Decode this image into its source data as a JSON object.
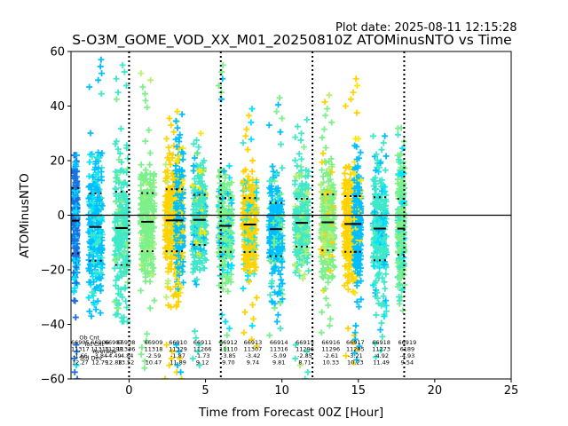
{
  "plot_date": "Plot date: 2025-08-11 12:15:28",
  "colors": {
    "frame": "#000000",
    "median": "#000000",
    "scatter_palette": [
      "#00bfff",
      "#00e5ff",
      "#3ee8c8",
      "#7cf08a",
      "#b8f070",
      "#ffd200",
      "#ffe600"
    ]
  },
  "chart_data": {
    "type": "scatter",
    "title": "S-O3M_GOME_VOD_XX_M01_20250810Z ATOMinusNTO vs Time",
    "xlabel": "Time from Forecast 00Z [Hour]",
    "ylabel": "ATOMinusNTO",
    "xlim": [
      -3.8,
      25
    ],
    "ylim": [
      -60,
      60
    ],
    "xticks": [
      0,
      5,
      10,
      15,
      20,
      25
    ],
    "yticks": [
      -60,
      -40,
      -20,
      0,
      20,
      40,
      60
    ],
    "zero_line": 0,
    "forecast_boundaries": [
      0,
      6,
      12,
      18
    ],
    "bins": [
      {
        "x": -3.5,
        "median": -2,
        "p25": -14,
        "p75": 10,
        "min": -60,
        "max": 22,
        "color": "#1e6fe0",
        "width": 0.25
      },
      {
        "x": -2.2,
        "median": -4.3,
        "p25": -16.7,
        "p75": 8.0,
        "min": -37,
        "max": 57,
        "color": "#00bfff",
        "width": 0.9
      },
      {
        "x": -0.5,
        "median": -4.7,
        "p25": -18.2,
        "p75": 8.6,
        "min": -39,
        "max": 55,
        "color": "#3ee8c8",
        "width": 0.9
      },
      {
        "x": 1.2,
        "median": -2.4,
        "p25": -13.2,
        "p75": 8.1,
        "min": -56,
        "max": 52,
        "color": "#7cf08a",
        "width": 0.9
      },
      {
        "x": 2.8,
        "median": -1.9,
        "p25": -13.2,
        "p75": 9.5,
        "min": -60,
        "max": 38,
        "color": "#ffd200",
        "width": 0.9
      },
      {
        "x": 3.3,
        "median": -1.9,
        "p25": -13.2,
        "p75": 9.5,
        "min": -60,
        "max": 37,
        "color": "#00bfff",
        "width": 0.5
      },
      {
        "x": 4.6,
        "median": -1.7,
        "p25": -10.9,
        "p75": 7.5,
        "min": -55,
        "max": 30,
        "color": "#3ee8c8",
        "width": 0.9
      },
      {
        "x": 6.3,
        "median": -3.9,
        "p25": -13.4,
        "p75": 6.3,
        "min": -49,
        "max": 55,
        "color": "#7cf08a",
        "width": 0.9
      },
      {
        "x": 7.9,
        "median": -3.4,
        "p25": -13.5,
        "p75": 6.3,
        "min": -48,
        "max": 39,
        "color": "#ffd200",
        "width": 0.9
      },
      {
        "x": 9.6,
        "median": -5.1,
        "p25": -15.0,
        "p75": 4.5,
        "min": -44,
        "max": 43,
        "color": "#00bfff",
        "width": 0.9
      },
      {
        "x": 11.3,
        "median": -2.8,
        "p25": -11.5,
        "p75": 6.0,
        "min": -60,
        "max": 35,
        "color": "#3ee8c8",
        "width": 0.9
      },
      {
        "x": 13.0,
        "median": -2.6,
        "p25": -12.9,
        "p75": 7.6,
        "min": -43,
        "max": 44,
        "color": "#7cf08a",
        "width": 0.9
      },
      {
        "x": 14.5,
        "median": -3.2,
        "p25": -13.4,
        "p75": 7.0,
        "min": -54,
        "max": 50,
        "color": "#ffd200",
        "width": 0.9
      },
      {
        "x": 14.95,
        "median": -3.2,
        "p25": -13.4,
        "p75": 7.0,
        "min": -53,
        "max": 28,
        "color": "#00bfff",
        "width": 0.45
      },
      {
        "x": 16.4,
        "median": -4.9,
        "p25": -16.5,
        "p75": 6.6,
        "min": -52,
        "max": 29,
        "color": "#3ee8c8",
        "width": 0.9
      },
      {
        "x": 17.8,
        "median": -4.9,
        "p25": -14.5,
        "p75": 6.0,
        "min": -35,
        "max": 32,
        "color": "#7cf08a",
        "width": 0.45
      }
    ],
    "annotations": [
      {
        "x": -3.2,
        "lines": [
          "66905",
          "11317",
          "-1.66",
          "12.27"
        ]
      },
      {
        "x": -1.9,
        "lines": [
          "66906",
          "11315",
          "-3.84",
          "12.79"
        ]
      },
      {
        "x": -2.6,
        "y": -45.5,
        "lines": [
          "Ob Cnt"
        ]
      },
      {
        "x": -2.3,
        "y": -48,
        "lines": [
          "Tot Cnt"
        ]
      },
      {
        "x": -1.6,
        "y": -50.5,
        "lines": [
          "Average"
        ]
      },
      {
        "x": -2.5,
        "y": -53,
        "lines": [
          "Std Dev"
        ]
      },
      {
        "x": -1.0,
        "lines": [
          "66907",
          "11298",
          "-4.49",
          "12.88"
        ]
      },
      {
        "x": -0.2,
        "lines": [
          "66908",
          "11336",
          "-4.84",
          "13.52"
        ]
      },
      {
        "x": 1.6,
        "lines": [
          "66909",
          "11318",
          "-2.59",
          "10.47"
        ]
      },
      {
        "x": 3.2,
        "lines": [
          "66910",
          "11329",
          "-1.87",
          "11.89"
        ]
      },
      {
        "x": 4.8,
        "lines": [
          "66911",
          "11266",
          "-1.73",
          "9.12"
        ]
      },
      {
        "x": 6.5,
        "lines": [
          "66912",
          "11110",
          "-3.85",
          "9.70"
        ]
      },
      {
        "x": 8.1,
        "lines": [
          "66913",
          "11307",
          "-3.42",
          "9.74"
        ]
      },
      {
        "x": 9.8,
        "lines": [
          "66914",
          "11316",
          "-5.09",
          "9.81"
        ]
      },
      {
        "x": 11.5,
        "lines": [
          "66915",
          "11296",
          "-2.85",
          "8.71"
        ]
      },
      {
        "x": 13.2,
        "lines": [
          "66916",
          "11296",
          "-2.61",
          "10.33"
        ]
      },
      {
        "x": 14.8,
        "lines": [
          "66917",
          "11285",
          "-3.21",
          "10.23"
        ]
      },
      {
        "x": 16.5,
        "lines": [
          "66918",
          "11273",
          "-4.92",
          "11.49"
        ]
      },
      {
        "x": 18.2,
        "lines": [
          "66919",
          "6189",
          "-4.93",
          "9.54"
        ]
      }
    ]
  }
}
